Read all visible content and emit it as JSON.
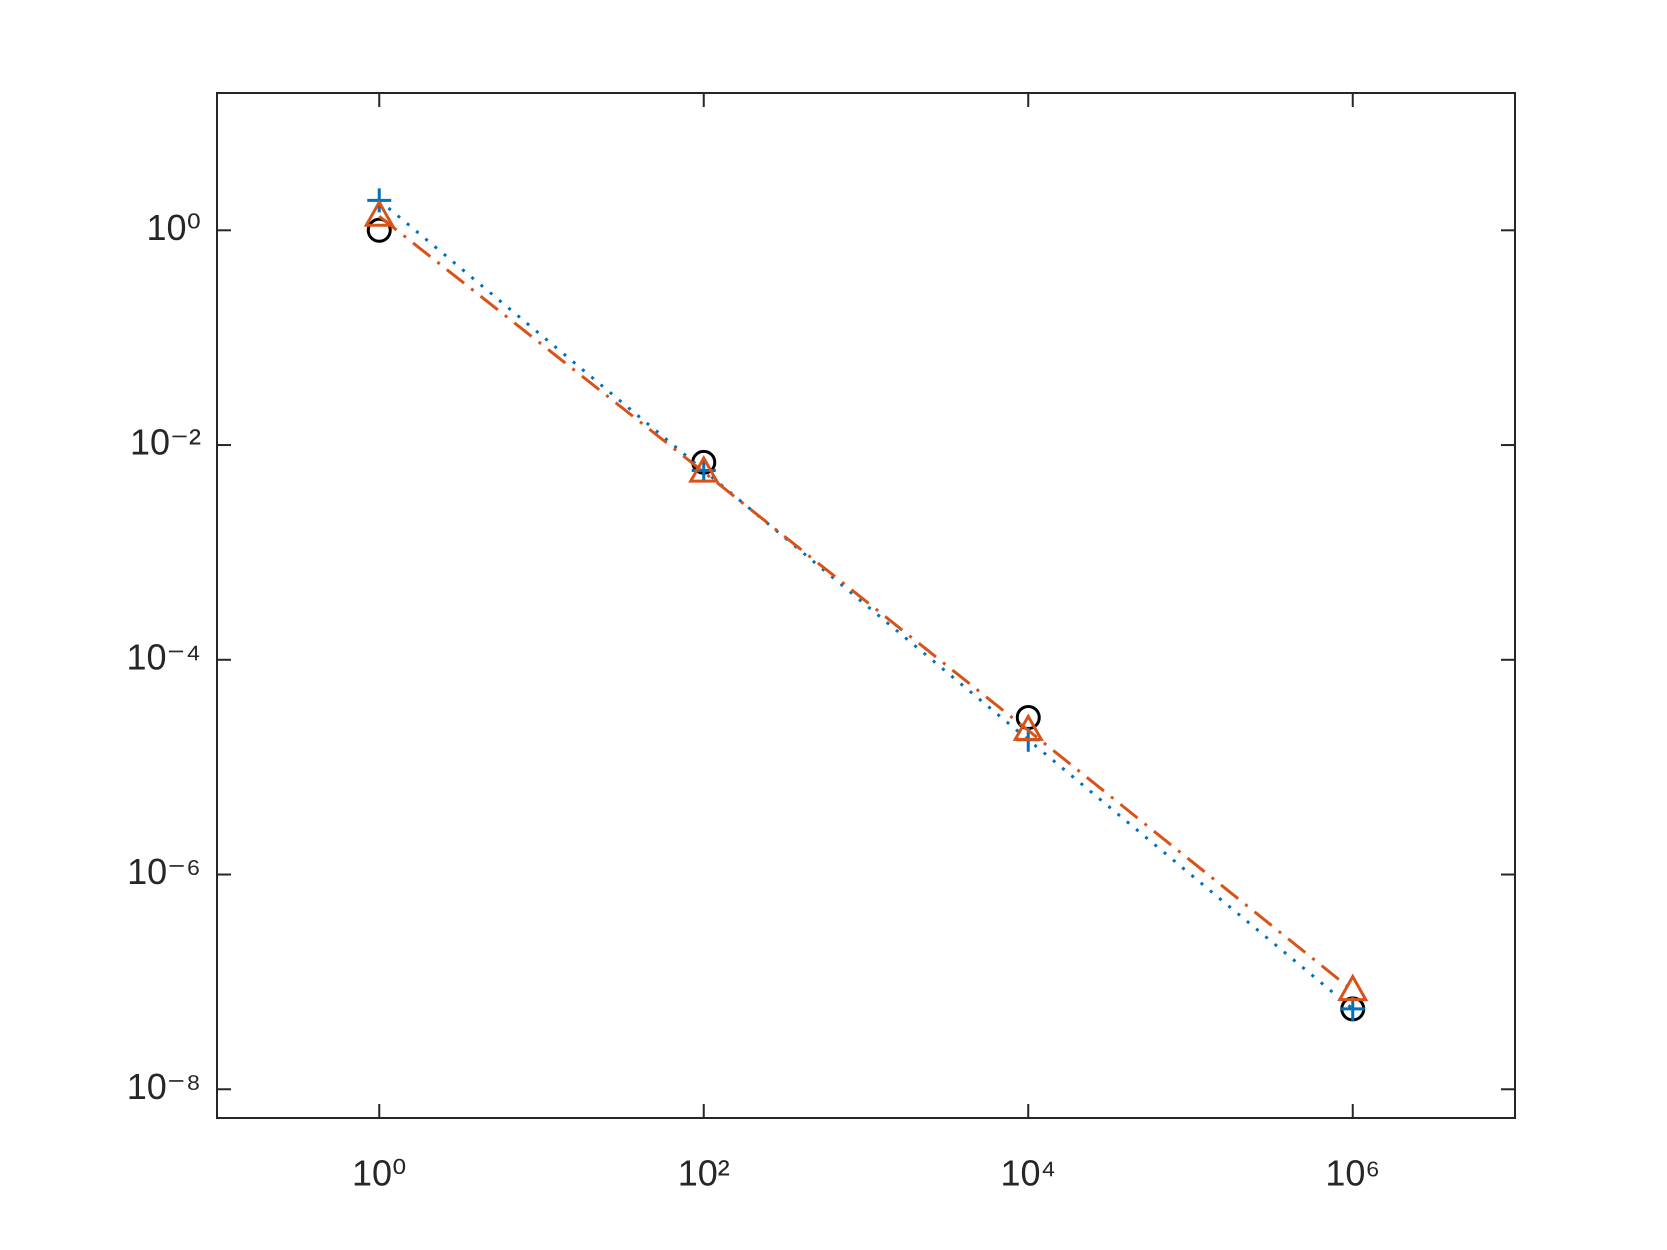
{
  "chart_data": {
    "type": "line",
    "xlog": true,
    "ylog": true,
    "x": [
      1,
      100,
      10000,
      1000000
    ],
    "series": [
      {
        "color": "#000000",
        "marker": "circle",
        "linestyle": "none",
        "values": [
          1,
          0.0069,
          2.9e-05,
          5.6e-08
        ]
      },
      {
        "color": "#0072BD",
        "marker": "plus",
        "linestyle": "dotted",
        "values": [
          1.9,
          0.0058,
          1.8e-05,
          5.6e-08
        ]
      },
      {
        "color": "#D95319",
        "marker": "triangle",
        "linestyle": "dashdot",
        "values": [
          1.35,
          0.0056,
          2.2e-05,
          8.3e-08
        ]
      }
    ],
    "xlim": [
      0.1,
      10000000
    ],
    "ylim": [
      5.4e-09,
      19
    ],
    "xticks": [
      {
        "value": 1,
        "label": "10⁰"
      },
      {
        "value": 100,
        "label": "10²"
      },
      {
        "value": 10000,
        "label": "10⁴"
      },
      {
        "value": 1000000,
        "label": "10⁶"
      }
    ],
    "yticks": [
      {
        "value": 1e-08,
        "label": "10⁻⁸"
      },
      {
        "value": 1e-06,
        "label": "10⁻⁶"
      },
      {
        "value": 0.0001,
        "label": "10⁻⁴"
      },
      {
        "value": 0.01,
        "label": "10⁻²"
      },
      {
        "value": 1,
        "label": "10⁰"
      }
    ],
    "grid": false
  }
}
